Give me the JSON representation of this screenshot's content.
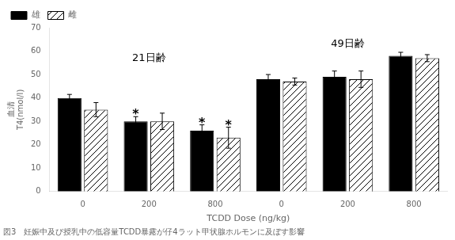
{
  "chart_data": {
    "type": "bar",
    "categories": [
      "0",
      "200",
      "800",
      "0",
      "200",
      "800"
    ],
    "series": [
      {
        "name": "雄",
        "color": "#000000",
        "values": [
          40,
          30,
          26,
          48,
          49,
          58
        ],
        "errors": [
          1.5,
          2.0,
          2.5,
          2.0,
          2.5,
          1.5
        ]
      },
      {
        "name": "雌",
        "color": "#ffffff",
        "values": [
          35,
          30,
          23,
          47,
          48,
          57
        ],
        "errors": [
          3.0,
          3.5,
          4.5,
          1.5,
          3.5,
          1.5
        ]
      }
    ],
    "xlabel": "TCDD Dose (ng/kg)",
    "ylabel": [
      "血清",
      "T4(nmol/l)"
    ],
    "ylim": [
      0,
      70
    ],
    "yticks": [
      0,
      10,
      20,
      30,
      40,
      50,
      60,
      70
    ],
    "grid": false,
    "legend": "upper left",
    "annotations": [
      {
        "text": "*",
        "series": "雄",
        "category": 1
      },
      {
        "text": "*",
        "series": "雄",
        "category": 2
      },
      {
        "text": "*",
        "series": "雌",
        "category": 2
      },
      {
        "text": "21日齢",
        "category": 1,
        "y": 57
      },
      {
        "text": "49日齢",
        "category": 4,
        "y": 63
      }
    ],
    "caption": "図3　妊娠中及び授乳中の低容量TCDD暴露が仔4ラット甲状腺ホルモンに及ぼす影響"
  }
}
